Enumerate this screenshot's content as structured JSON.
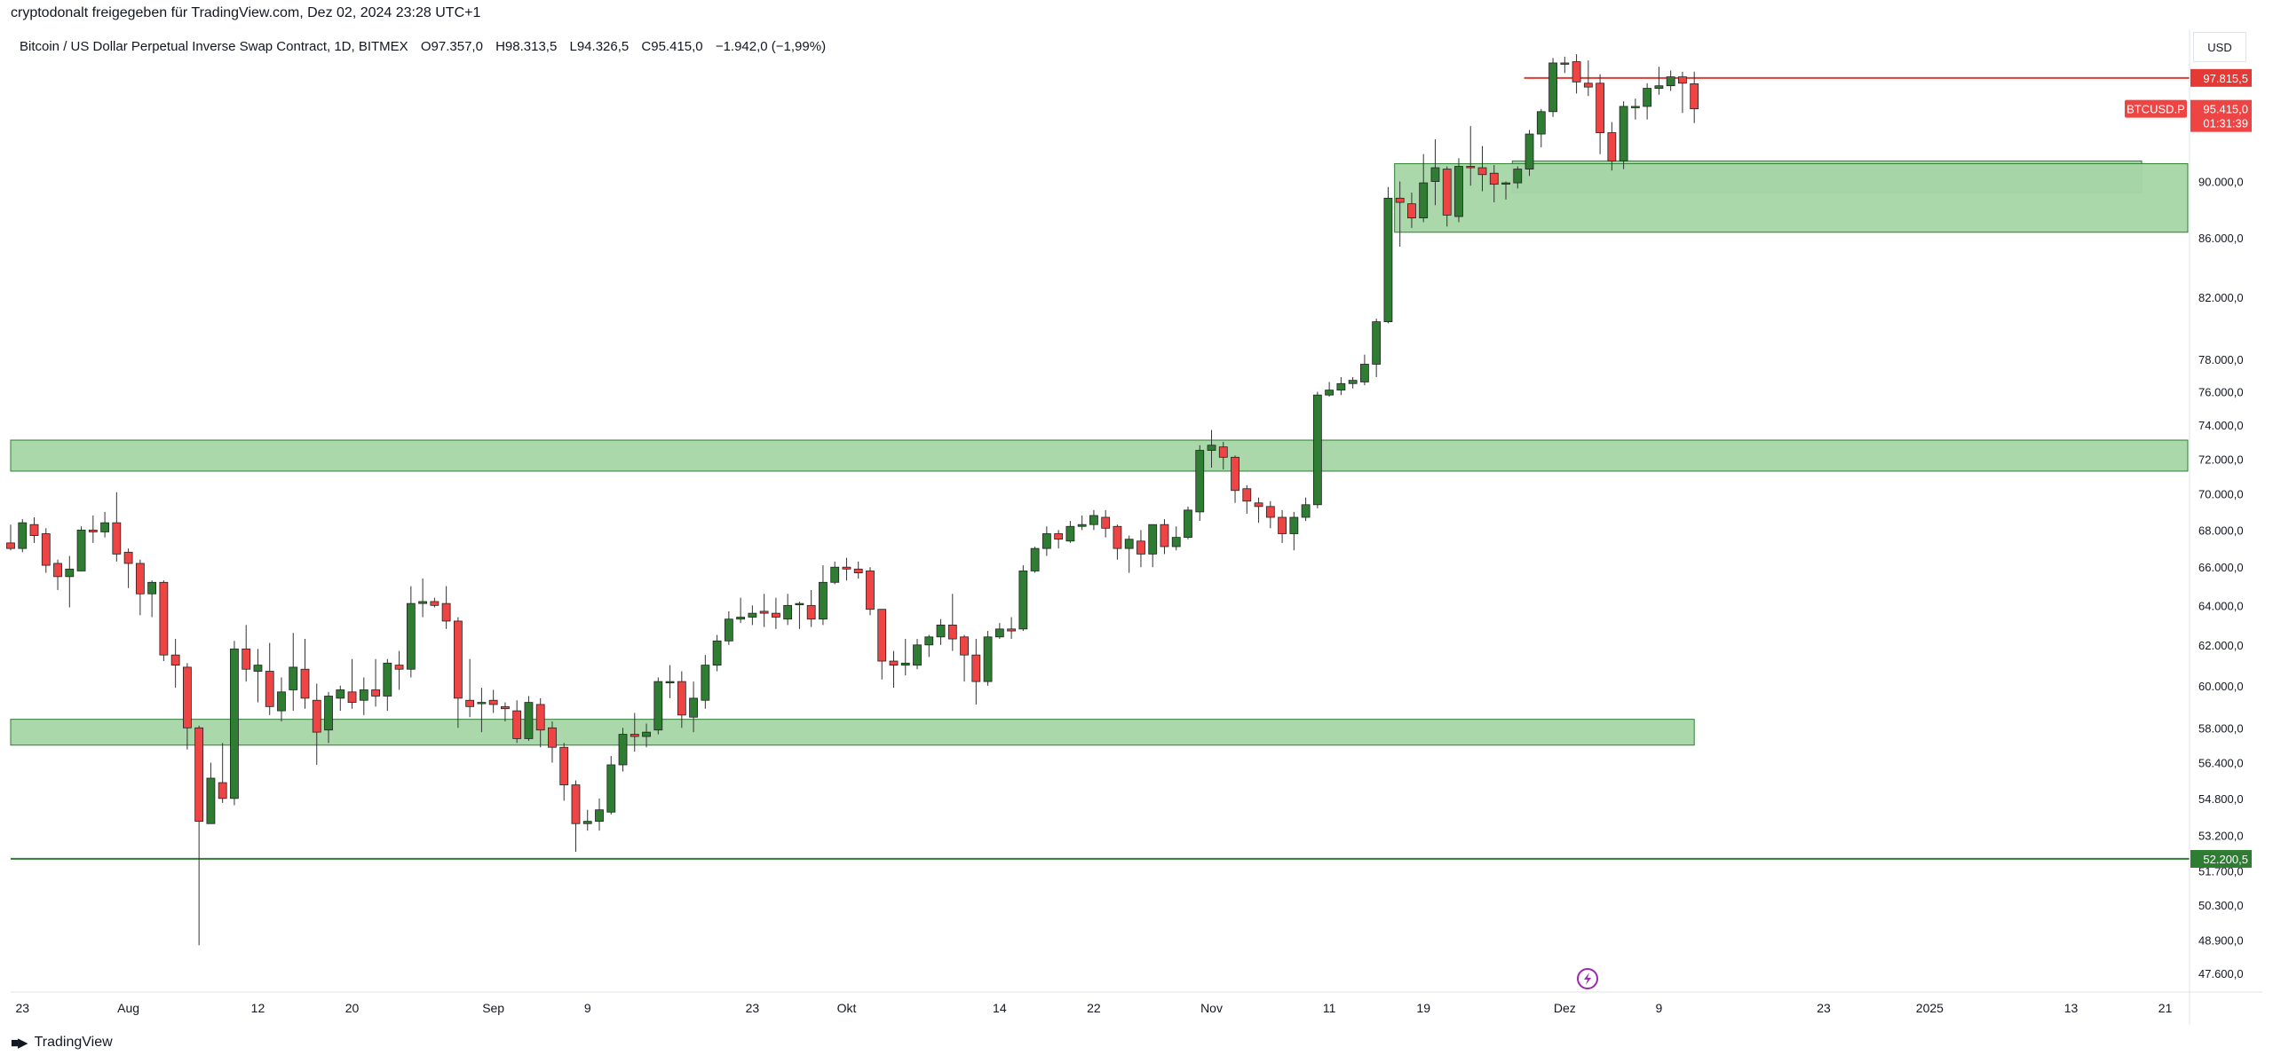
{
  "header": {
    "share_text": "cryptodonalt freigegeben für TradingView.com, Dez 02, 2024 23:28 UTC+1"
  },
  "legend": {
    "symbol": "Bitcoin / US Dollar Perpetual Inverse Swap Contract, 1D, BITMEX",
    "open": "O97.357,0",
    "high": "H98.313,5",
    "low": "L94.326,5",
    "close": "C95.415,0",
    "change": "−1.942,0 (−1,99%)"
  },
  "price_scale": {
    "currency": "USD"
  },
  "footer": {
    "brand": "TradingView"
  },
  "colors": {
    "up": "#2e7d32",
    "down": "#ef4444",
    "zone_fill": "#a5d6a7",
    "zone_border": "#2e7d32",
    "resistance_line": "#e53935",
    "support_line": "#2e7d32"
  },
  "chart_data": {
    "type": "candlestick",
    "symbol": "BTCUSD.P",
    "interval": "1D",
    "y_scale": "log",
    "ylim": [
      46900,
      101500
    ],
    "y_ticks": [
      {
        "v": 90000,
        "label": "90.000,0"
      },
      {
        "v": 86000,
        "label": "86.000,0"
      },
      {
        "v": 82000,
        "label": "82.000,0"
      },
      {
        "v": 78000,
        "label": "78.000,0"
      },
      {
        "v": 76000,
        "label": "76.000,0"
      },
      {
        "v": 74000,
        "label": "74.000,0"
      },
      {
        "v": 72000,
        "label": "72.000,0"
      },
      {
        "v": 70000,
        "label": "70.000,0"
      },
      {
        "v": 68000,
        "label": "68.000,0"
      },
      {
        "v": 66000,
        "label": "66.000,0"
      },
      {
        "v": 64000,
        "label": "64.000,0"
      },
      {
        "v": 62000,
        "label": "62.000,0"
      },
      {
        "v": 60000,
        "label": "60.000,0"
      },
      {
        "v": 58000,
        "label": "58.000,0"
      },
      {
        "v": 56400,
        "label": "56.400,0"
      },
      {
        "v": 54800,
        "label": "54.800,0"
      },
      {
        "v": 53200,
        "label": "53.200,0"
      },
      {
        "v": 51700,
        "label": "51.700,0"
      },
      {
        "v": 50300,
        "label": "50.300,0"
      },
      {
        "v": 48900,
        "label": "48.900,0"
      },
      {
        "v": 47600,
        "label": "47.600,0"
      }
    ],
    "x_ticks": [
      {
        "day": 1,
        "label": "23"
      },
      {
        "day": 10,
        "label": "Aug"
      },
      {
        "day": 21,
        "label": "12"
      },
      {
        "day": 29,
        "label": "20"
      },
      {
        "day": 41,
        "label": "Sep"
      },
      {
        "day": 49,
        "label": "9"
      },
      {
        "day": 63,
        "label": "23"
      },
      {
        "day": 71,
        "label": "Okt"
      },
      {
        "day": 84,
        "label": "14"
      },
      {
        "day": 92,
        "label": "22"
      },
      {
        "day": 102,
        "label": "Nov"
      },
      {
        "day": 112,
        "label": "11"
      },
      {
        "day": 120,
        "label": "19"
      },
      {
        "day": 132,
        "label": "Dez"
      },
      {
        "day": 140,
        "label": "9"
      },
      {
        "day": 154,
        "label": "23"
      },
      {
        "day": 163,
        "label": "2025"
      },
      {
        "day": 175,
        "label": "13"
      },
      {
        "day": 183,
        "label": "21"
      }
    ],
    "candles": [
      [
        0,
        67300,
        67000,
        68300,
        66900
      ],
      [
        1,
        67000,
        68400,
        68600,
        66800
      ],
      [
        2,
        68300,
        67700,
        68700,
        67300
      ],
      [
        3,
        67800,
        66100,
        68100,
        65700
      ],
      [
        4,
        66200,
        65500,
        66400,
        64800
      ],
      [
        5,
        65500,
        65900,
        66600,
        63900
      ],
      [
        6,
        65800,
        68000,
        68200,
        65800
      ],
      [
        7,
        68000,
        67900,
        68800,
        67300
      ],
      [
        8,
        67900,
        68400,
        69000,
        67600
      ],
      [
        9,
        68400,
        66700,
        70100,
        66300
      ],
      [
        10,
        66800,
        66200,
        67000,
        64900
      ],
      [
        11,
        66200,
        64600,
        66400,
        63500
      ],
      [
        12,
        64600,
        65200,
        65300,
        63400
      ],
      [
        13,
        65200,
        61500,
        65300,
        61200
      ],
      [
        14,
        61500,
        61000,
        62300,
        59900
      ],
      [
        15,
        60900,
        58000,
        61100,
        57000
      ],
      [
        16,
        58000,
        53800,
        58100,
        48700
      ],
      [
        17,
        53700,
        55700,
        56400,
        53700
      ],
      [
        18,
        55500,
        54800,
        57300,
        54600
      ],
      [
        19,
        54800,
        61800,
        62200,
        54500
      ],
      [
        20,
        61800,
        60800,
        63000,
        60200
      ],
      [
        21,
        60700,
        61000,
        61800,
        59200
      ],
      [
        22,
        60700,
        59000,
        62100,
        58600
      ],
      [
        23,
        58800,
        59700,
        60400,
        58300
      ],
      [
        24,
        59800,
        60900,
        62600,
        58800
      ],
      [
        25,
        60800,
        59400,
        62300,
        58900
      ],
      [
        26,
        59300,
        57800,
        60100,
        56300
      ],
      [
        27,
        57900,
        59500,
        59700,
        57300
      ],
      [
        28,
        59400,
        59800,
        60000,
        58800
      ],
      [
        29,
        59700,
        59200,
        61300,
        58900
      ],
      [
        30,
        59300,
        59800,
        60400,
        58600
      ],
      [
        31,
        59800,
        59500,
        61300,
        59000
      ],
      [
        32,
        59500,
        61100,
        61300,
        58800
      ],
      [
        33,
        61000,
        60800,
        61700,
        59800
      ],
      [
        34,
        60800,
        64100,
        65000,
        60400
      ],
      [
        35,
        64100,
        64200,
        65400,
        63400
      ],
      [
        36,
        64200,
        64000,
        64400,
        63900
      ],
      [
        37,
        64100,
        63200,
        65000,
        62800
      ],
      [
        38,
        63200,
        59400,
        63400,
        58000
      ],
      [
        39,
        59300,
        59000,
        61300,
        58500
      ],
      [
        40,
        59200,
        59200,
        59900,
        57800
      ],
      [
        41,
        59300,
        59100,
        59800,
        58700
      ],
      [
        42,
        59000,
        58900,
        59200,
        58300
      ],
      [
        43,
        58800,
        57500,
        59300,
        57300
      ],
      [
        44,
        57500,
        59200,
        59500,
        57400
      ],
      [
        45,
        59100,
        57900,
        59400,
        57100
      ],
      [
        46,
        58000,
        57100,
        58300,
        56400
      ],
      [
        47,
        57100,
        55400,
        57300,
        54700
      ],
      [
        48,
        55400,
        53700,
        55600,
        52500
      ],
      [
        49,
        53700,
        53800,
        54300,
        53400
      ],
      [
        50,
        53800,
        54300,
        54800,
        53400
      ],
      [
        51,
        54200,
        56300,
        56700,
        54100
      ],
      [
        52,
        56300,
        57700,
        58000,
        56000
      ],
      [
        53,
        57700,
        57600,
        58700,
        56900
      ],
      [
        54,
        57600,
        57800,
        58200,
        57100
      ],
      [
        55,
        57900,
        60200,
        60400,
        57700
      ],
      [
        56,
        60200,
        60200,
        61000,
        59400
      ],
      [
        57,
        60200,
        58600,
        60700,
        58000
      ],
      [
        58,
        58500,
        59400,
        60200,
        57800
      ],
      [
        59,
        59300,
        61000,
        61500,
        58900
      ],
      [
        60,
        61000,
        62200,
        62500,
        60700
      ],
      [
        61,
        62200,
        63300,
        63700,
        62000
      ],
      [
        62,
        63300,
        63400,
        64400,
        63100
      ],
      [
        63,
        63400,
        63600,
        64000,
        63000
      ],
      [
        64,
        63700,
        63600,
        64600,
        62900
      ],
      [
        65,
        63600,
        63400,
        64400,
        62800
      ],
      [
        66,
        63300,
        64000,
        64600,
        63000
      ],
      [
        67,
        64100,
        64100,
        64200,
        62800
      ],
      [
        68,
        64000,
        63300,
        64800,
        62900
      ],
      [
        69,
        63300,
        65200,
        66100,
        63000
      ],
      [
        70,
        65200,
        66000,
        66300,
        65100
      ],
      [
        71,
        66000,
        65900,
        66500,
        65300
      ],
      [
        72,
        65900,
        65700,
        66300,
        65400
      ],
      [
        73,
        65800,
        63800,
        66000,
        63500
      ],
      [
        74,
        63800,
        61200,
        63800,
        60300
      ],
      [
        75,
        61200,
        61000,
        61700,
        59900
      ],
      [
        76,
        61000,
        61100,
        62300,
        60500
      ],
      [
        77,
        61000,
        62000,
        62300,
        60800
      ],
      [
        78,
        62000,
        62400,
        62500,
        61400
      ],
      [
        79,
        62400,
        63000,
        63300,
        62000
      ],
      [
        80,
        63000,
        62300,
        64600,
        61700
      ],
      [
        81,
        62400,
        61500,
        62500,
        60200
      ],
      [
        82,
        61500,
        60200,
        62300,
        59100
      ],
      [
        83,
        60200,
        62400,
        62700,
        60000
      ],
      [
        84,
        62400,
        62800,
        63100,
        62300
      ],
      [
        85,
        62800,
        62700,
        63400,
        62300
      ],
      [
        86,
        62800,
        65800,
        66100,
        62700
      ],
      [
        87,
        65800,
        67000,
        67100,
        65700
      ],
      [
        88,
        67000,
        67800,
        68200,
        66600
      ],
      [
        89,
        67800,
        67500,
        68000,
        67000
      ],
      [
        90,
        67400,
        68200,
        68500,
        67300
      ],
      [
        91,
        68200,
        68300,
        68800,
        68000
      ],
      [
        92,
        68300,
        68800,
        69100,
        68000
      ],
      [
        93,
        68700,
        68100,
        69100,
        67600
      ],
      [
        94,
        68200,
        67000,
        68300,
        66400
      ],
      [
        95,
        67000,
        67500,
        67700,
        65700
      ],
      [
        96,
        67400,
        66700,
        68000,
        66000
      ],
      [
        97,
        66700,
        68300,
        68300,
        66000
      ],
      [
        98,
        68300,
        67100,
        68600,
        66700
      ],
      [
        99,
        67100,
        67600,
        68200,
        66900
      ],
      [
        100,
        67600,
        69100,
        69300,
        67500
      ],
      [
        101,
        69000,
        72500,
        72800,
        68500
      ],
      [
        102,
        72500,
        72800,
        73700,
        71500
      ],
      [
        103,
        72700,
        72100,
        73000,
        71400
      ],
      [
        104,
        72100,
        70200,
        72200,
        69500
      ],
      [
        105,
        70300,
        69600,
        70500,
        68900
      ],
      [
        106,
        69500,
        69300,
        69800,
        68400
      ],
      [
        107,
        69300,
        68700,
        69600,
        68100
      ],
      [
        108,
        68700,
        67800,
        69100,
        67300
      ],
      [
        109,
        67800,
        68700,
        69000,
        66900
      ],
      [
        110,
        68700,
        69400,
        69800,
        68500
      ],
      [
        111,
        69400,
        75800,
        76000,
        69200
      ],
      [
        112,
        75800,
        76100,
        76600,
        75700
      ],
      [
        113,
        76100,
        76500,
        76900,
        75800
      ],
      [
        114,
        76500,
        76700,
        76900,
        76200
      ],
      [
        115,
        76600,
        77700,
        78300,
        76400
      ],
      [
        116,
        77700,
        80400,
        80600,
        76900
      ],
      [
        117,
        80400,
        88800,
        89600,
        80300
      ],
      [
        118,
        88800,
        88500,
        90000,
        85400
      ],
      [
        119,
        88400,
        87400,
        89200,
        86700
      ],
      [
        120,
        87400,
        89900,
        92000,
        87100
      ],
      [
        121,
        90000,
        91000,
        93100,
        88300
      ],
      [
        122,
        90900,
        87600,
        91100,
        86800
      ],
      [
        123,
        87500,
        91100,
        91700,
        87100
      ],
      [
        124,
        91100,
        91000,
        94100,
        89700
      ],
      [
        125,
        91000,
        90500,
        92600,
        89300
      ],
      [
        126,
        90600,
        89800,
        91200,
        88500
      ],
      [
        127,
        89900,
        89900,
        90000,
        88700
      ],
      [
        128,
        89900,
        90900,
        91100,
        89500
      ],
      [
        129,
        90900,
        93500,
        93800,
        90400
      ],
      [
        130,
        93500,
        95200,
        95400,
        92500
      ],
      [
        131,
        95200,
        99000,
        99400,
        94800
      ],
      [
        132,
        99000,
        99000,
        99500,
        98200
      ],
      [
        133,
        99100,
        97500,
        99700,
        96600
      ],
      [
        134,
        97400,
        97100,
        99200,
        96400
      ],
      [
        135,
        97400,
        93600,
        98100,
        92000
      ],
      [
        136,
        93600,
        91500,
        94400,
        90800
      ],
      [
        137,
        91500,
        95600,
        96000,
        90900
      ],
      [
        138,
        95600,
        95600,
        96200,
        94600
      ],
      [
        139,
        95600,
        97000,
        97400,
        94600
      ],
      [
        140,
        97000,
        97200,
        98700,
        96500
      ],
      [
        141,
        97200,
        97900,
        98400,
        96800
      ],
      [
        142,
        97900,
        97400,
        98300,
        95100
      ],
      [
        143,
        97357,
        95415,
        98313.5,
        94326.5
      ]
    ],
    "zones": [
      {
        "from_day": 128,
        "to_day": 181,
        "high": 91500,
        "low": 89200
      },
      {
        "from_day": 118,
        "to_day": 186,
        "high": 91300,
        "low": 86400
      },
      {
        "from_day": 0,
        "to_day": 186,
        "high": 73100,
        "low": 71300
      },
      {
        "from_day": 0,
        "to_day": 143,
        "high": 58400,
        "low": 57200
      }
    ],
    "lines": [
      {
        "from_day": 129,
        "price": 97815.5,
        "label": "97.815,5",
        "color": "#e53935"
      },
      {
        "from_day": 0,
        "price": 52200.5,
        "label": "52.200,5",
        "color": "#2e7d32"
      }
    ],
    "last_price": {
      "label": "95.415,0",
      "countdown": "01:31:39",
      "symbol_tag": "BTCUSD.P",
      "value": 95415
    }
  }
}
